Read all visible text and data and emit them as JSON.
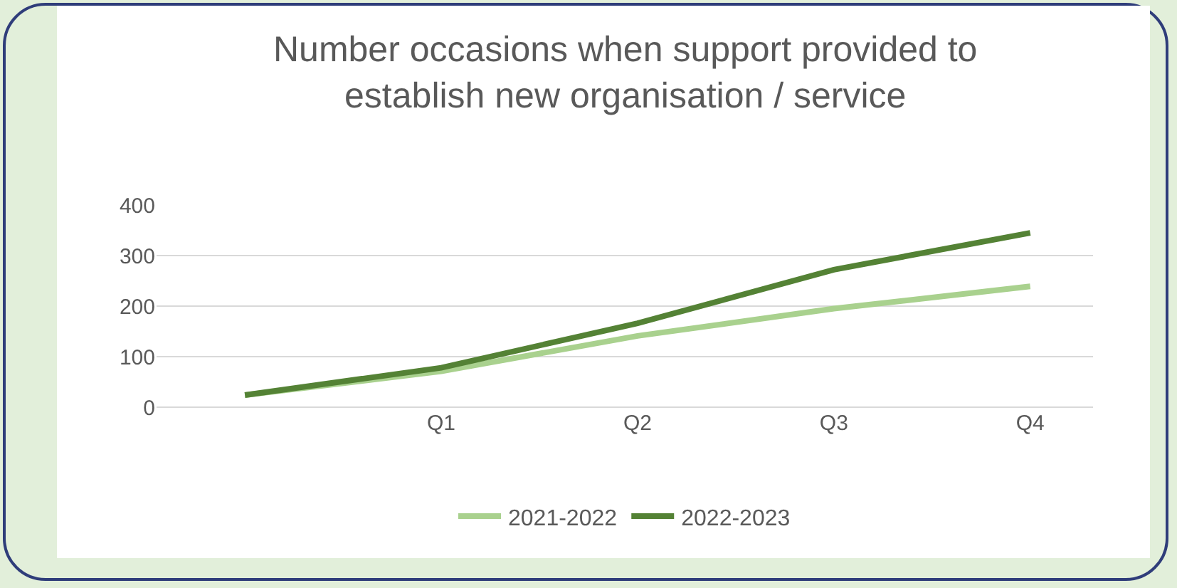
{
  "chart_data": {
    "type": "line",
    "title": "Number occasions when support provided to\nestablish new organisation / service",
    "categories": [
      null,
      "Q1",
      "Q2",
      "Q3",
      "Q4"
    ],
    "series": [
      {
        "name": "2021-2022",
        "color": "#a9d18e",
        "values": [
          24,
          71,
          141,
          195,
          239
        ]
      },
      {
        "name": "2022-2023",
        "color": "#548235",
        "values": [
          24,
          78,
          166,
          272,
          345
        ]
      }
    ],
    "ylim": [
      0,
      400
    ],
    "yticks": [
      0,
      100,
      200,
      300,
      400
    ],
    "grid": "y",
    "legend": "bottom",
    "marker": "none",
    "line_style": "solid"
  }
}
